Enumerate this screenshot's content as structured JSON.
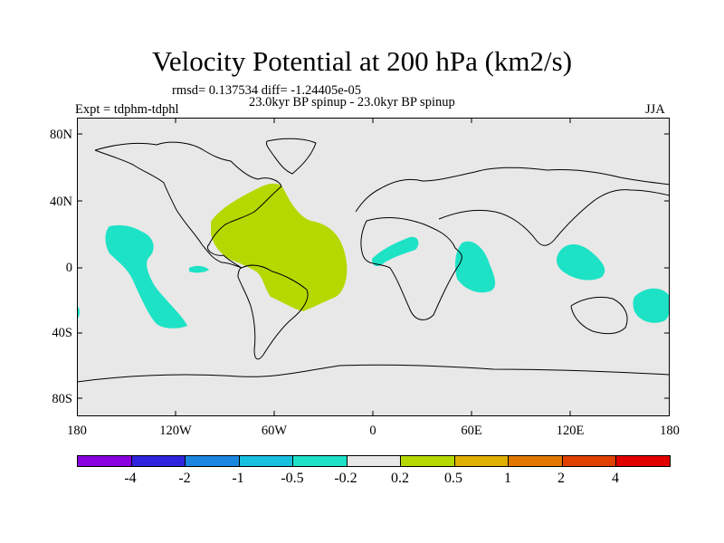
{
  "title": "Velocity Potential at 200 hPa (km2/s)",
  "stats_line": "rmsd= 0.137534 diff= -1.24405e-05",
  "expt_label": "Expt = tdphm-tdphl",
  "run_label": "23.0kyr BP spinup - 23.0kyr BP spinup",
  "season": "JJA",
  "lat_labels": [
    "80N",
    "40N",
    "0",
    "40S",
    "80S"
  ],
  "lon_labels": [
    "180",
    "120W",
    "60W",
    "0",
    "60E",
    "120E",
    "180"
  ],
  "colorbar": {
    "labels": [
      "-4",
      "-2",
      "-1",
      "-0.5",
      "-0.2",
      "0.2",
      "0.5",
      "1",
      "2",
      "4"
    ],
    "colors": [
      "#8a00e0",
      "#3024de",
      "#1a86e0",
      "#18c0e0",
      "#1de2c6",
      "#e8e8e8",
      "#b5d800",
      "#e0b000",
      "#e07800",
      "#e04000",
      "#e00000"
    ]
  },
  "colors": {
    "ocean": "#e8e8e8",
    "positive_0_2_to_0_5": "#b5d800",
    "negative_0_5_to_0_2": "#1de2c6"
  },
  "anomaly_regions": [
    {
      "name": "north-atlantic-caribbean",
      "sign": "positive",
      "range": "0.2 to 0.5"
    },
    {
      "name": "central-pacific",
      "sign": "negative",
      "range": "-0.5 to -0.2"
    },
    {
      "name": "tropical-africa",
      "sign": "negative",
      "range": "-0.5 to -0.2"
    },
    {
      "name": "western-indian-ocean",
      "sign": "negative",
      "range": "-0.5 to -0.2"
    },
    {
      "name": "maritime-continent",
      "sign": "negative",
      "range": "-0.5 to -0.2"
    },
    {
      "name": "southwest-pacific",
      "sign": "negative",
      "range": "-0.5 to -0.2"
    }
  ]
}
